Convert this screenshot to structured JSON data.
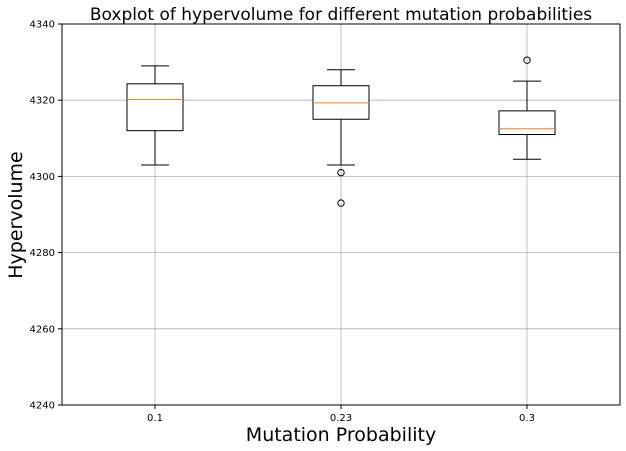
{
  "chart_data": {
    "type": "boxplot",
    "title": "Boxplot of hypervolume for different mutation probabilities",
    "xlabel": "Mutation Probability",
    "ylabel": "Hypervolume",
    "categories": [
      "0.1",
      "0.23",
      "0.3"
    ],
    "ylim": [
      4240,
      4340
    ],
    "yticks": [
      4240,
      4260,
      4280,
      4300,
      4320,
      4340
    ],
    "grid": true,
    "boxes": [
      {
        "category": "0.1",
        "whisker_low": 4303,
        "q1": 4312,
        "median": 4320.2,
        "q3": 4324.3,
        "whisker_high": 4329,
        "outliers": []
      },
      {
        "category": "0.23",
        "whisker_low": 4303,
        "q1": 4315,
        "median": 4319.3,
        "q3": 4323.8,
        "whisker_high": 4328,
        "outliers": [
          4301,
          4293
        ]
      },
      {
        "category": "0.3",
        "whisker_low": 4304.5,
        "q1": 4311,
        "median": 4312.5,
        "q3": 4317.2,
        "whisker_high": 4325,
        "outliers": [
          4330.5
        ]
      }
    ],
    "colors": {
      "box": "#000000",
      "median": "#ff7f0e",
      "grid": "#b0b0b0"
    }
  }
}
